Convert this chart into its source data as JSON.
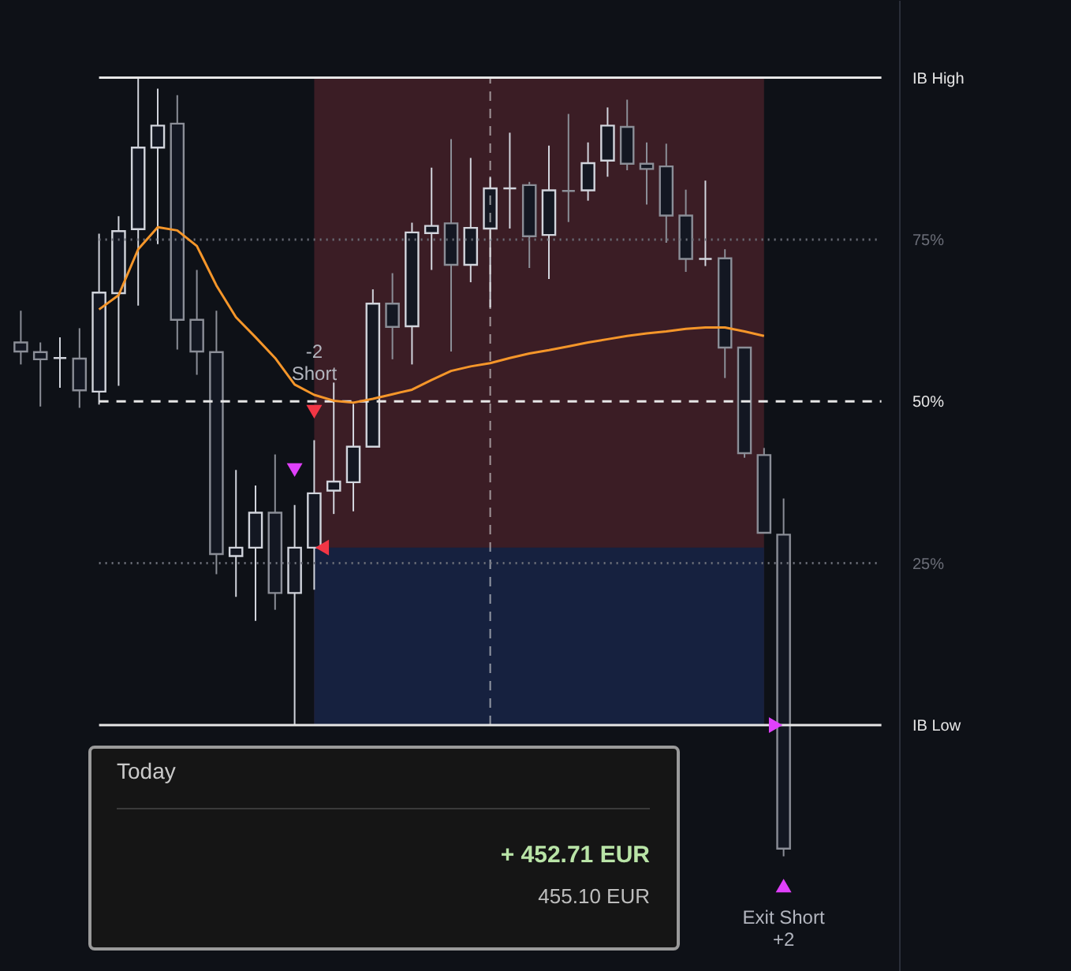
{
  "chart_data": {
    "type": "candlestick",
    "categories": [
      null,
      null,
      null,
      null,
      null,
      null,
      null,
      null,
      null,
      null,
      null,
      null,
      null,
      null,
      null,
      null,
      null,
      null,
      null,
      null,
      null,
      null,
      null,
      null,
      null,
      null,
      null,
      null,
      null,
      null,
      null,
      null,
      null,
      null,
      null,
      null,
      null,
      null,
      null,
      null,
      null,
      null,
      null,
      null,
      null
    ],
    "ohlc": [
      [
        59.1,
        64.0,
        55.7,
        57.7
      ],
      [
        57.6,
        59.1,
        49.2,
        56.5
      ],
      [
        56.7,
        59.9,
        52.1,
        56.7
      ],
      [
        56.6,
        61.3,
        49.0,
        51.7
      ],
      [
        51.5,
        75.9,
        49.5,
        66.8
      ],
      [
        66.7,
        78.6,
        52.4,
        76.3
      ],
      [
        76.6,
        100.0,
        64.8,
        89.2
      ],
      [
        89.2,
        98.3,
        74.3,
        92.6
      ],
      [
        92.9,
        97.3,
        58.0,
        62.6
      ],
      [
        62.6,
        70.3,
        54.1,
        57.7
      ],
      [
        57.6,
        64.0,
        23.3,
        26.4
      ],
      [
        26.1,
        39.4,
        19.8,
        27.4
      ],
      [
        27.4,
        37.0,
        16.1,
        32.8
      ],
      [
        32.8,
        41.8,
        17.8,
        20.4
      ],
      [
        20.4,
        34.0,
        0.0,
        27.4
      ],
      [
        27.4,
        44.0,
        20.9,
        35.8
      ],
      [
        36.2,
        52.9,
        32.6,
        37.6
      ],
      [
        37.5,
        49.6,
        33.0,
        43.0
      ],
      [
        43.0,
        67.3,
        43.0,
        65.1
      ],
      [
        65.1,
        69.8,
        56.5,
        61.5
      ],
      [
        61.6,
        77.6,
        55.7,
        76.1
      ],
      [
        76.0,
        86.1,
        70.3,
        77.1
      ],
      [
        77.5,
        90.5,
        57.7,
        71.1
      ],
      [
        71.1,
        87.6,
        68.4,
        76.8
      ],
      [
        76.7,
        84.7,
        64.5,
        82.9
      ],
      [
        82.9,
        91.5,
        76.7,
        82.9
      ],
      [
        83.4,
        83.9,
        70.6,
        75.5
      ],
      [
        75.7,
        89.5,
        68.9,
        82.6
      ],
      [
        82.5,
        94.4,
        77.7,
        82.5
      ],
      [
        82.6,
        90.0,
        81.0,
        86.8
      ],
      [
        87.2,
        95.4,
        84.7,
        92.6
      ],
      [
        92.4,
        96.6,
        85.7,
        86.7
      ],
      [
        86.7,
        90.0,
        80.4,
        85.9
      ],
      [
        86.3,
        89.8,
        74.5,
        78.7
      ],
      [
        78.7,
        82.7,
        70.0,
        72.0
      ],
      [
        72.0,
        84.1,
        70.9,
        72.0
      ],
      [
        72.1,
        73.5,
        53.6,
        58.3
      ],
      [
        58.3,
        58.3,
        41.3,
        42.0
      ],
      [
        41.7,
        42.8,
        29.7,
        29.7
      ],
      [
        29.4,
        35.0,
        -20.3,
        -19.1
      ],
      null,
      null,
      null,
      null,
      null
    ],
    "colors": [
      "#8b8e97",
      "#8b8e97",
      "#d1d4dc",
      "#8b8e97",
      "#d1d4dc",
      "#d1d4dc",
      "#d1d4dc",
      "#d1d4dc",
      "#8b8e97",
      "#8b8e97",
      "#8b8e97",
      "#d1d4dc",
      "#d1d4dc",
      "#8b8e97",
      "#d1d4dc",
      "#d1d4dc",
      "#d1d4dc",
      "#d1d4dc",
      "#d1d4dc",
      "#8b8e97",
      "#d1d4dc",
      "#d1d4dc",
      "#8b8e97",
      "#d1d4dc",
      "#d1d4dc",
      "#d1d4dc",
      "#8b8e97",
      "#d1d4dc",
      "#8b8e97",
      "#d1d4dc",
      "#d1d4dc",
      "#8b8e97",
      "#8b8e97",
      "#8b8e97",
      "#8b8e97",
      "#d1d4dc",
      "#8b8e97",
      "#8b8e97",
      "#8b8e97",
      "#8b8e97",
      null,
      null,
      null,
      null,
      null
    ],
    "series": [
      {
        "type": "area",
        "color": "#3b1d25",
        "values": [
          null,
          null,
          null,
          null,
          null,
          null,
          null,
          null,
          null,
          null,
          null,
          null,
          null,
          null,
          null,
          100,
          100,
          100,
          100,
          100,
          100,
          100,
          100,
          100,
          100,
          100,
          100,
          100,
          100,
          100,
          100,
          100,
          100,
          100,
          100,
          100,
          100,
          100,
          100,
          null,
          null,
          null,
          null,
          null,
          null
        ]
      },
      {
        "type": "area",
        "color": "#16213f",
        "values": [
          null,
          null,
          null,
          null,
          null,
          null,
          null,
          null,
          null,
          null,
          null,
          null,
          null,
          null,
          null,
          27.4,
          27.4,
          27.4,
          27.4,
          27.4,
          27.4,
          27.4,
          27.4,
          27.4,
          27.4,
          27.4,
          27.4,
          27.4,
          27.4,
          27.4,
          27.4,
          27.4,
          27.4,
          27.4,
          27.4,
          27.4,
          27.4,
          27.4,
          27.4,
          null,
          null,
          null,
          null,
          null,
          null
        ]
      },
      {
        "type": "line",
        "color": "#e6e6e6",
        "values": [
          null,
          null,
          null,
          null,
          100,
          100,
          100,
          100,
          100,
          100,
          100,
          100,
          100,
          100,
          100,
          100,
          100,
          100,
          100,
          100,
          100,
          100,
          100,
          100,
          100,
          100,
          100,
          100,
          100,
          100,
          100,
          100,
          100,
          100,
          100,
          100,
          100,
          100,
          100,
          100,
          100,
          100,
          100,
          100,
          100
        ]
      },
      {
        "type": "line",
        "color": "#6b6e78",
        "line_style": "dotted",
        "values": [
          null,
          null,
          null,
          null,
          75,
          75,
          75,
          75,
          75,
          75,
          75,
          75,
          75,
          75,
          75,
          75,
          75,
          75,
          75,
          75,
          75,
          75,
          75,
          75,
          75,
          75,
          75,
          75,
          75,
          75,
          75,
          75,
          75,
          75,
          75,
          75,
          75,
          75,
          75,
          75,
          75,
          75,
          75,
          75,
          75
        ]
      },
      {
        "type": "line",
        "color": "#e6e6e6",
        "line_style": "dashed",
        "values": [
          null,
          null,
          null,
          null,
          50,
          50,
          50,
          50,
          50,
          50,
          50,
          50,
          50,
          50,
          50,
          50,
          50,
          50,
          50,
          50,
          50,
          50,
          50,
          50,
          50,
          50,
          50,
          50,
          50,
          50,
          50,
          50,
          50,
          50,
          50,
          50,
          50,
          50,
          50,
          50,
          50,
          50,
          50,
          50,
          50
        ],
        "errors": [
          null,
          null,
          null,
          null,
          null,
          null,
          null,
          null,
          null,
          null,
          null,
          null,
          null,
          null,
          null,
          null,
          null,
          null,
          null,
          null,
          null,
          null,
          null,
          null,
          50,
          null,
          null,
          null,
          null,
          null,
          null,
          null,
          null,
          null,
          null,
          null,
          null,
          null,
          null,
          null,
          null,
          null,
          null,
          null,
          null
        ]
      },
      {
        "type": "line",
        "color": "#6b6e78",
        "line_style": "dotted",
        "values": [
          null,
          null,
          null,
          null,
          25,
          25,
          25,
          25,
          25,
          25,
          25,
          25,
          25,
          25,
          25,
          25,
          25,
          25,
          25,
          25,
          25,
          25,
          25,
          25,
          25,
          25,
          25,
          25,
          25,
          25,
          25,
          25,
          25,
          25,
          25,
          25,
          25,
          25,
          25,
          25,
          25,
          25,
          25,
          25,
          25
        ]
      },
      {
        "type": "line",
        "color": "#e6e6e6",
        "values": [
          null,
          null,
          null,
          null,
          0,
          0,
          0,
          0,
          0,
          0,
          0,
          0,
          0,
          0,
          0,
          0,
          0,
          0,
          0,
          0,
          0,
          0,
          0,
          0,
          0,
          0,
          0,
          0,
          0,
          0,
          0,
          0,
          0,
          0,
          0,
          0,
          0,
          0,
          0,
          0,
          0,
          0,
          0,
          0,
          0
        ]
      },
      {
        "type": "line",
        "color": "#f5962a",
        "values": [
          null,
          null,
          null,
          null,
          64.2,
          66.4,
          73.5,
          76.9,
          76.4,
          74.0,
          67.9,
          63.0,
          59.9,
          56.7,
          52.6,
          51.0,
          50.1,
          49.8,
          50.4,
          51.1,
          51.8,
          53.3,
          54.7,
          55.4,
          55.9,
          56.7,
          57.4,
          57.9,
          58.5,
          59.1,
          59.6,
          60.1,
          60.5,
          60.8,
          61.2,
          61.4,
          61.4,
          60.8,
          60.1,
          null,
          null,
          null,
          null,
          null,
          null
        ]
      },
      {
        "type": "scatter",
        "color": "#e040fb",
        "marker": "triangle",
        "values": [
          null,
          null,
          null,
          null,
          null,
          null,
          null,
          null,
          null,
          null,
          null,
          null,
          null,
          null,
          39.4,
          null,
          null,
          null,
          null,
          null,
          null,
          null,
          null,
          null,
          null,
          null,
          null,
          null,
          null,
          null,
          null,
          null,
          null,
          null,
          null,
          null,
          null,
          null,
          null,
          null,
          null,
          null,
          null,
          null,
          null
        ]
      },
      {
        "type": "scatter",
        "name": "-2\nShort",
        "color": "#f23645",
        "marker": "triangle",
        "values": [
          null,
          null,
          null,
          null,
          null,
          null,
          null,
          null,
          null,
          null,
          null,
          null,
          null,
          null,
          null,
          48.4,
          null,
          null,
          null,
          null,
          null,
          null,
          null,
          null,
          null,
          null,
          null,
          null,
          null,
          null,
          null,
          null,
          null,
          null,
          null,
          null,
          null,
          null,
          null,
          null,
          null,
          null,
          null,
          null,
          null
        ]
      },
      {
        "type": "scatter",
        "color": "#f23645",
        "marker": "triangle",
        "values": [
          null,
          null,
          null,
          null,
          null,
          null,
          null,
          null,
          null,
          null,
          null,
          null,
          null,
          null,
          null,
          27.4,
          null,
          null,
          null,
          null,
          null,
          null,
          null,
          null,
          null,
          null,
          null,
          null,
          null,
          null,
          null,
          null,
          null,
          null,
          null,
          null,
          null,
          null,
          null,
          null,
          null,
          null,
          null,
          null,
          null
        ]
      },
      {
        "type": "scatter",
        "color": "#e040fb",
        "marker": "triangle",
        "values": [
          null,
          null,
          null,
          null,
          null,
          null,
          null,
          null,
          null,
          null,
          null,
          null,
          null,
          null,
          null,
          null,
          null,
          null,
          null,
          null,
          null,
          null,
          null,
          null,
          null,
          null,
          null,
          null,
          null,
          null,
          null,
          null,
          null,
          null,
          null,
          null,
          null,
          null,
          null,
          0,
          null,
          null,
          null,
          null,
          null
        ]
      },
      {
        "type": "scatter",
        "name": "Exit Short\n+2",
        "color": "#e040fb",
        "marker": "triangle",
        "values": [
          null,
          null,
          null,
          null,
          null,
          null,
          null,
          null,
          null,
          null,
          null,
          null,
          null,
          null,
          null,
          null,
          null,
          null,
          null,
          null,
          null,
          null,
          null,
          null,
          null,
          null,
          null,
          null,
          null,
          null,
          null,
          null,
          null,
          null,
          null,
          null,
          null,
          null,
          null,
          -24.8,
          null,
          null,
          null,
          null,
          null
        ]
      }
    ],
    "ylim": [
      -38,
      112
    ],
    "yticks": [
      {
        "value": 100,
        "label": "IB High"
      },
      {
        "value": 75,
        "label": "75%"
      },
      {
        "value": 50,
        "label": "50%"
      },
      {
        "value": 25,
        "label": "25%"
      },
      {
        "value": 0,
        "label": "IB Low"
      }
    ],
    "tick_labels": "y",
    "annotations": [
      "Today",
      "+ 452.71 EUR",
      "455.10 EUR"
    ]
  }
}
